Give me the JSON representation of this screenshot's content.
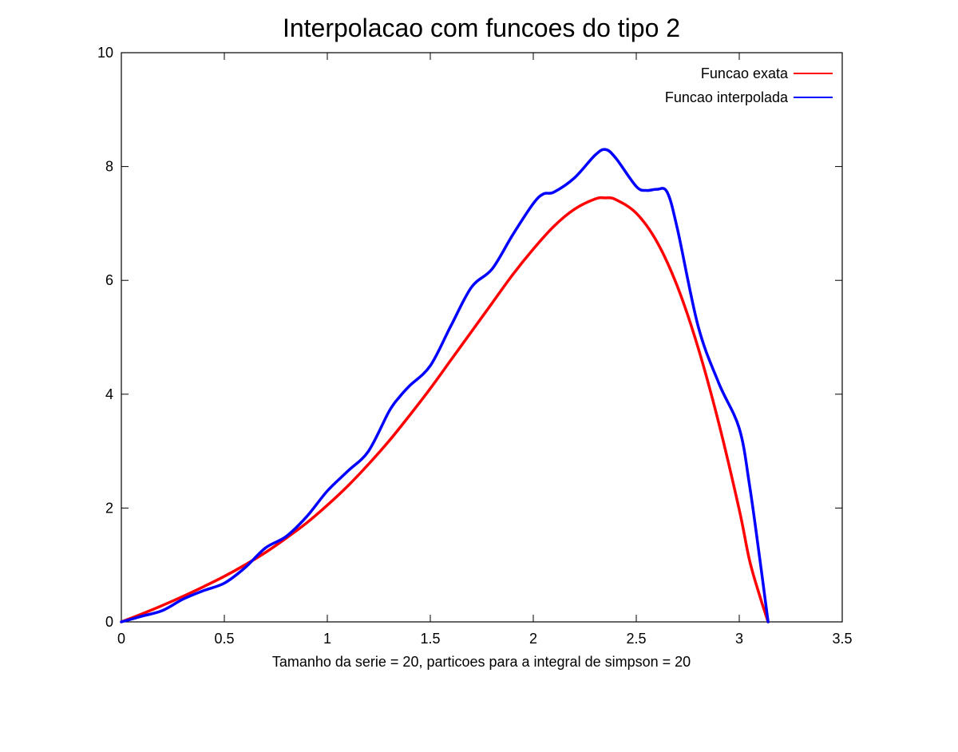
{
  "chart_data": {
    "type": "line",
    "title": "Interpolacao com funcoes do tipo 2",
    "xlabel": "Tamanho da serie = 20, particoes para a integral de simpson = 20",
    "ylabel": "",
    "xlim": [
      0,
      3.5
    ],
    "ylim": [
      0,
      10
    ],
    "xticks": [
      0,
      0.5,
      1,
      1.5,
      2,
      2.5,
      3,
      3.5
    ],
    "xtick_labels": [
      "0",
      "0.5",
      "1",
      "1.5",
      "2",
      "2.5",
      "3",
      "3.5"
    ],
    "yticks": [
      0,
      2,
      4,
      6,
      8,
      10
    ],
    "ytick_labels": [
      "0",
      "2",
      "4",
      "6",
      "8",
      "10"
    ],
    "grid": false,
    "legend_position": "top-right",
    "series": [
      {
        "name": "Funcao exata",
        "color": "#ff0000",
        "x": [
          0,
          0.1,
          0.2,
          0.3,
          0.4,
          0.5,
          0.6,
          0.7,
          0.8,
          0.9,
          1.0,
          1.1,
          1.2,
          1.3,
          1.4,
          1.5,
          1.6,
          1.7,
          1.8,
          1.9,
          2.0,
          2.1,
          2.2,
          2.3,
          2.35,
          2.4,
          2.5,
          2.6,
          2.7,
          2.8,
          2.9,
          3.0,
          3.05,
          3.1,
          3.14
        ],
        "values": [
          0,
          0.14,
          0.29,
          0.45,
          0.62,
          0.8,
          1.0,
          1.22,
          1.47,
          1.74,
          2.05,
          2.39,
          2.77,
          3.18,
          3.63,
          4.1,
          4.6,
          5.1,
          5.6,
          6.1,
          6.55,
          6.95,
          7.25,
          7.43,
          7.45,
          7.42,
          7.18,
          6.68,
          5.89,
          4.82,
          3.5,
          1.97,
          1.08,
          0.45,
          0
        ]
      },
      {
        "name": "Funcao interpolada",
        "color": "#0000ff",
        "x": [
          0,
          0.1,
          0.2,
          0.3,
          0.4,
          0.5,
          0.6,
          0.7,
          0.8,
          0.9,
          1.0,
          1.1,
          1.2,
          1.3,
          1.35,
          1.4,
          1.5,
          1.6,
          1.7,
          1.8,
          1.9,
          2.0,
          2.05,
          2.1,
          2.2,
          2.3,
          2.35,
          2.4,
          2.5,
          2.55,
          2.6,
          2.65,
          2.7,
          2.8,
          2.9,
          3.0,
          3.05,
          3.1,
          3.14
        ],
        "values": [
          0,
          0.1,
          0.2,
          0.4,
          0.55,
          0.68,
          0.95,
          1.3,
          1.5,
          1.85,
          2.3,
          2.65,
          3.0,
          3.7,
          3.95,
          4.15,
          4.5,
          5.2,
          5.88,
          6.2,
          6.8,
          7.35,
          7.52,
          7.55,
          7.8,
          8.2,
          8.3,
          8.15,
          7.65,
          7.58,
          7.6,
          7.55,
          6.9,
          5.2,
          4.2,
          3.4,
          2.4,
          1.1,
          0
        ]
      }
    ]
  }
}
